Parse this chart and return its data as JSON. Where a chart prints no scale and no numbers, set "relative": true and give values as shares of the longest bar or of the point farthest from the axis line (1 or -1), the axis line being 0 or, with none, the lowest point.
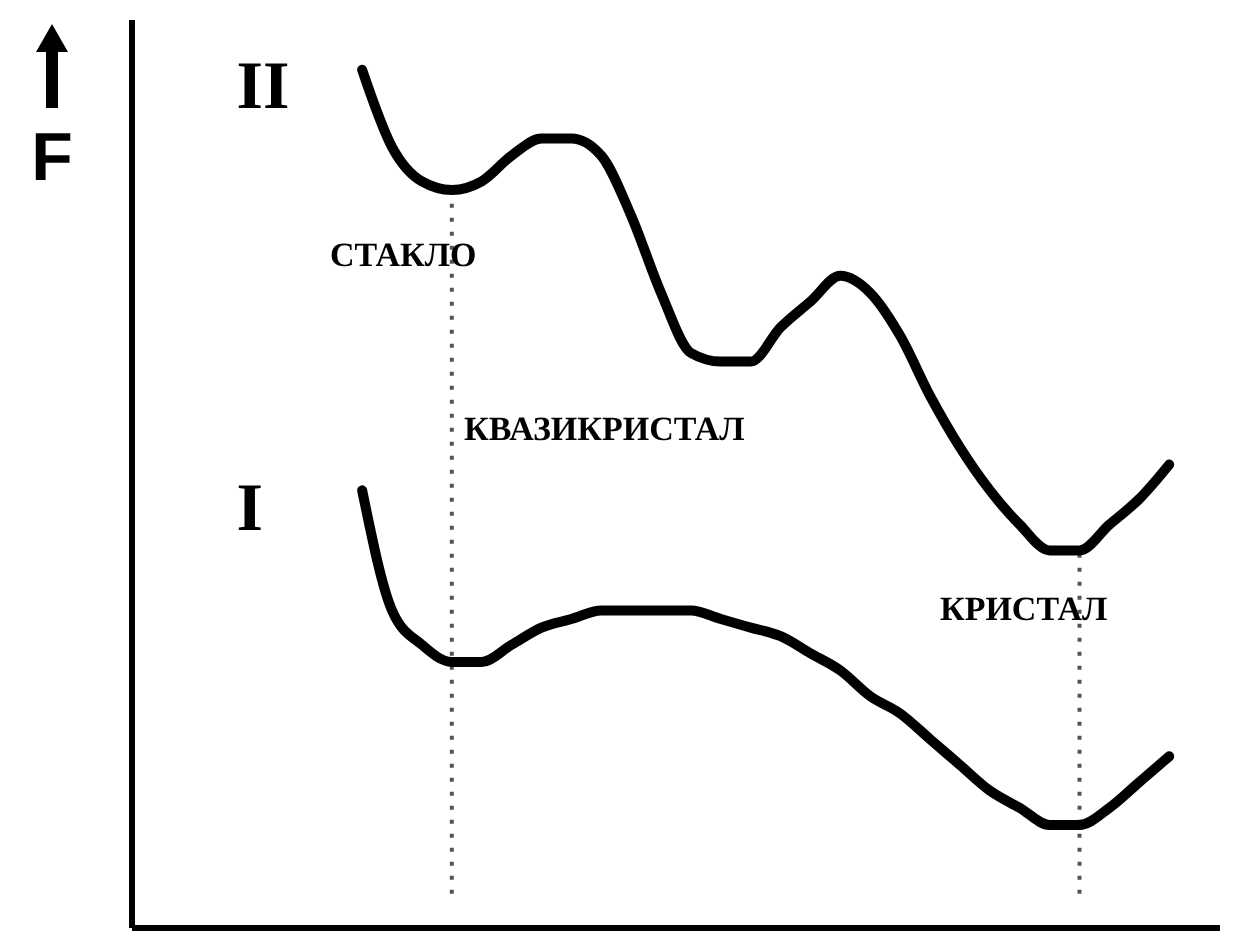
{
  "chart_data": {
    "type": "line",
    "relative": true,
    "ylabel": "F",
    "categories": [
      null,
      null,
      null,
      null,
      null,
      null,
      null,
      null,
      null,
      null,
      null,
      null,
      null,
      null,
      null,
      null,
      null,
      null,
      null,
      null,
      null,
      null,
      null,
      null,
      null,
      null,
      null,
      null
    ],
    "series": [
      {
        "name": "II",
        "color": "#000000",
        "values": [
          1.0,
          0.91,
          0.87,
          0.86,
          0.87,
          0.9,
          0.92,
          0.92,
          0.9,
          0.83,
          0.74,
          0.67,
          0.66,
          0.66,
          0.7,
          0.73,
          0.76,
          0.74,
          0.69,
          0.62,
          0.56,
          0.51,
          0.47,
          0.44,
          0.44,
          0.47,
          0.5,
          0.54
        ]
      },
      {
        "name": "I",
        "color": "#000000",
        "values": [
          0.51,
          0.37,
          0.33,
          0.31,
          0.31,
          0.33,
          0.35,
          0.36,
          0.37,
          0.37,
          0.37,
          0.37,
          0.36,
          0.35,
          0.34,
          0.32,
          0.3,
          0.27,
          0.25,
          0.22,
          0.19,
          0.16,
          0.14,
          0.12,
          0.12,
          0.14,
          0.17,
          0.2
        ]
      }
    ],
    "annotations": [
      "СТАКЛО",
      "КВАЗИКРИСТАЛ",
      "КРИСТАЛ"
    ],
    "marker": "none",
    "line_style": "solid"
  }
}
